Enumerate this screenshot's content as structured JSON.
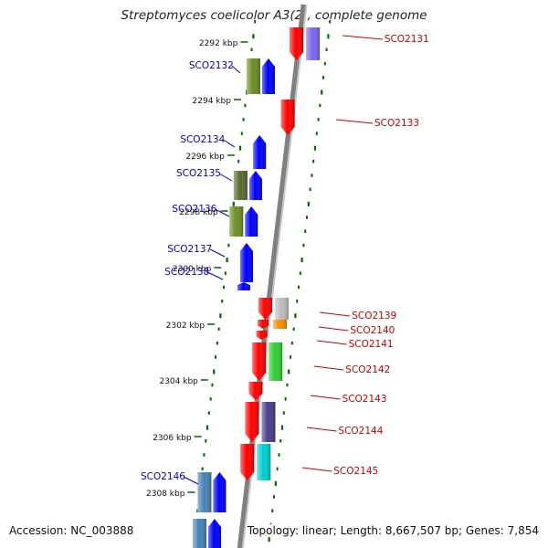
{
  "title": "Streptomyces coelicolor A3(2), complete genome",
  "accession_text": "Accession: NC_003888",
  "summary_text": "Topology: linear; Length: 8,667,507 bp; Genes: 7,854",
  "colors": {
    "backbone": "#808080",
    "scale_ticks": "#006600",
    "label_left": "#0000cc",
    "label_right": "#cc0000"
  },
  "scale_labels": [
    "2292 kbp",
    "2294 kbp",
    "2296 kbp",
    "2298 kbp",
    "2300 kbp",
    "2302 kbp",
    "2304 kbp",
    "2306 kbp",
    "2308 kbp"
  ],
  "genes_left": [
    {
      "label": "SCO2132",
      "strand": "forward",
      "color": "#0000ff",
      "partner_color": "#6b8e23"
    },
    {
      "label": "SCO2134",
      "strand": "forward",
      "color": "#0000ff"
    },
    {
      "label": "SCO2135",
      "strand": "forward",
      "color": "#0000ff",
      "partner_color": "#556b2f"
    },
    {
      "label": "SCO2136",
      "strand": "forward",
      "color": "#0000ff",
      "partner_color": "#6b8e23"
    },
    {
      "label": "SCO2137",
      "strand": "forward",
      "color": "#0000ff"
    },
    {
      "label": "SCO2138",
      "strand": "forward",
      "color": "#0000ff"
    },
    {
      "label": "SCO2146",
      "strand": "forward",
      "color": "#0000ff",
      "partner_color": "#4682b4"
    }
  ],
  "genes_right": [
    {
      "label": "SCO2131",
      "strand": "reverse",
      "color": "#ff0000",
      "partner_color": "#7b68ee"
    },
    {
      "label": "SCO2133",
      "strand": "reverse",
      "color": "#ff0000"
    },
    {
      "label": "SCO2139",
      "strand": "reverse",
      "color": "#ff0000",
      "partner_color": "#bbbbbb"
    },
    {
      "label": "SCO2140",
      "strand": "reverse",
      "color": "#ff0000",
      "partner_color": "#ff8c00"
    },
    {
      "label": "SCO2141",
      "strand": "reverse",
      "color": "#ff0000"
    },
    {
      "label": "SCO2142",
      "strand": "reverse",
      "color": "#ff0000",
      "partner_color": "#32cd32"
    },
    {
      "label": "SCO2143",
      "strand": "reverse",
      "color": "#ff0000"
    },
    {
      "label": "SCO2144",
      "strand": "reverse",
      "color": "#ff0000",
      "partner_color": "#483d8b"
    },
    {
      "label": "SCO2145",
      "strand": "reverse",
      "color": "#ff0000",
      "partner_color": "#00ced1"
    }
  ]
}
